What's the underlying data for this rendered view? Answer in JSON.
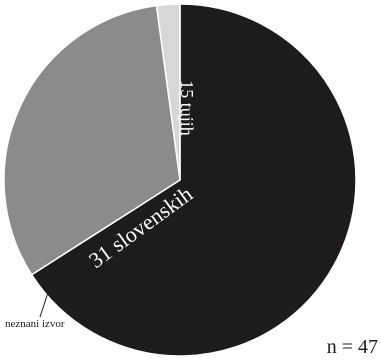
{
  "chart_data": {
    "type": "pie",
    "slices": [
      {
        "label": "31 slovenskih",
        "value": 31,
        "color": "#1e1b1c",
        "label_color": "#ffffff"
      },
      {
        "label": "15 tujih",
        "value": 15,
        "color": "#8b8b8b",
        "label_color": "#ffffff"
      },
      {
        "label": "neznani izvor",
        "value": 1,
        "color": "#d7d7d7",
        "label_color": "#1e1b1c"
      }
    ],
    "total_label": "n = 47",
    "legend": "none"
  }
}
